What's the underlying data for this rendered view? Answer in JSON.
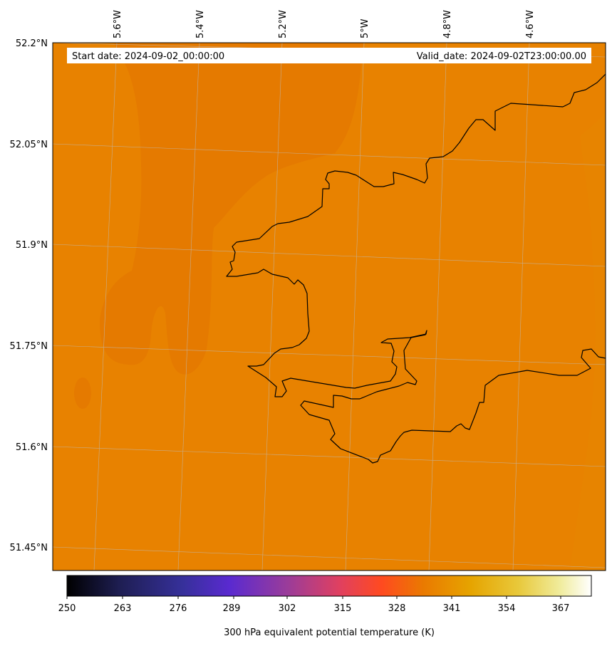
{
  "map": {
    "start_label": "Start date: 2024-09-02_00:00:00",
    "valid_label": "Valid_date: 2024-09-02T23:00:00.00",
    "lon_labels": [
      "5.6°W",
      "5.4°W",
      "5.2°W",
      "5°W",
      "4.8°W",
      "4.6°W"
    ],
    "lat_labels": [
      "52.2°N",
      "52.05°N",
      "51.9°N",
      "51.75°N",
      "51.6°N",
      "51.45°N"
    ],
    "field_color": "#e88200",
    "field_color_dark": "#e57a00",
    "coastline_color": "#000000",
    "gridline_color": "#bdbdbd"
  },
  "colorbar": {
    "label": "300 hPa equivalent potential temperature (K)",
    "ticks": [
      "250",
      "263",
      "276",
      "289",
      "302",
      "315",
      "328",
      "341",
      "354",
      "367"
    ],
    "range": [
      250,
      372
    ],
    "colormap_stops": [
      "#000000",
      "#2a2a6e",
      "#5a2ad0",
      "#b04a8a",
      "#ff4a20",
      "#e88200",
      "#e8c020",
      "#fffff0"
    ]
  }
}
